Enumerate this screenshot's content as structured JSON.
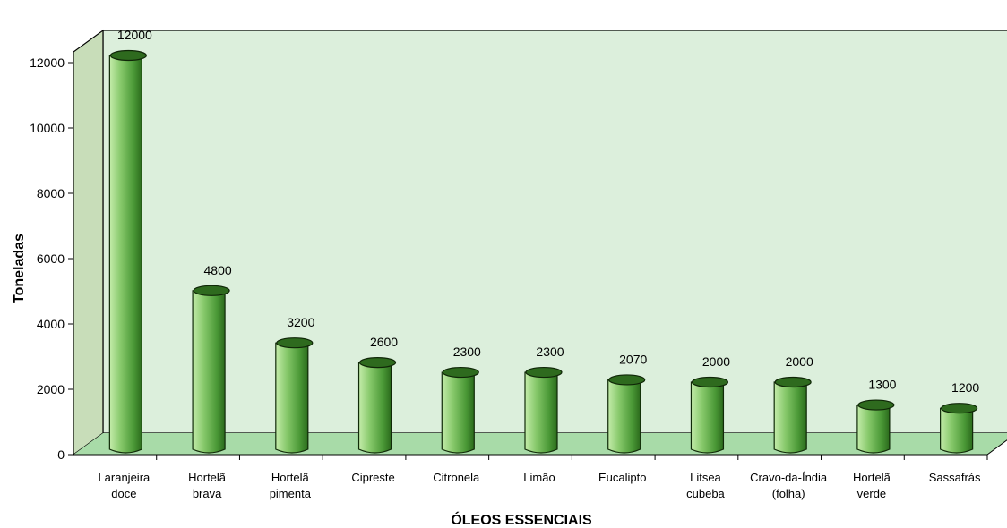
{
  "chart_data": {
    "type": "bar",
    "title": "",
    "xlabel": "ÓLEOS ESSENCIAIS",
    "ylabel": "Toneladas",
    "ylim": [
      0,
      12000
    ],
    "yticks": [
      "0",
      "2000",
      "4000",
      "6000",
      "8000",
      "10000",
      "12000"
    ],
    "categories": [
      [
        "Laranjeira",
        "doce"
      ],
      [
        "Hortelã",
        "brava"
      ],
      [
        "Hortelã",
        "pimenta"
      ],
      [
        "Cipreste"
      ],
      [
        "Citronela"
      ],
      [
        "Limão"
      ],
      [
        "Eucalipto"
      ],
      [
        "Litsea",
        "cubeba"
      ],
      [
        "Cravo-da-Índia",
        "(folha)"
      ],
      [
        "Hortelã",
        "verde"
      ],
      [
        "Sassafrás"
      ]
    ],
    "values": [
      12000,
      4800,
      3200,
      2600,
      2300,
      2300,
      2070,
      2000,
      2000,
      1300,
      1200
    ],
    "data_labels": [
      "12000",
      "4800",
      "3200",
      "2600",
      "2300",
      "2300",
      "2070",
      "2000",
      "2000",
      "1300",
      "1200"
    ],
    "grid": false,
    "legend": "none",
    "colors": {
      "wall": "#dcefdc",
      "side_wall": "#c8ddb9",
      "floor": "#a8dba8",
      "bar_light": "#b6e39c",
      "bar_mid": "#5fae45",
      "bar_dark": "#2f6e1f",
      "bar_top": "#2e6a1e"
    }
  }
}
